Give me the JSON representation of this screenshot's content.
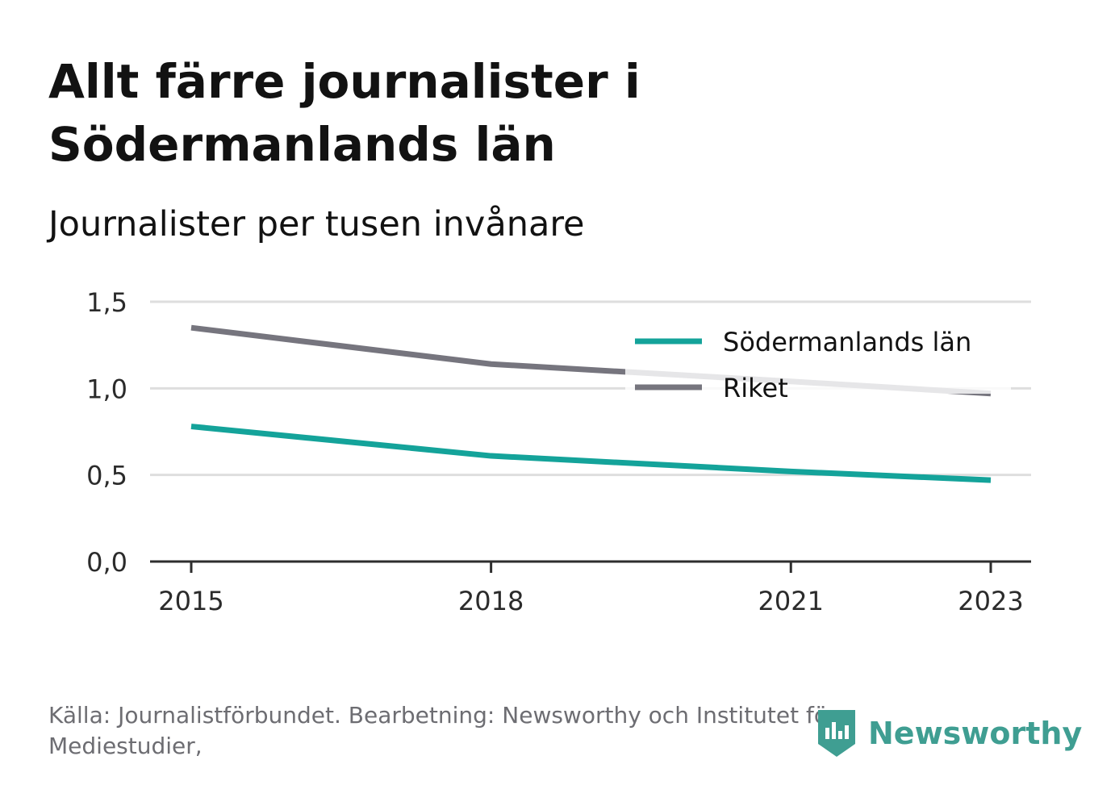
{
  "title": "Allt färre journalister i Södermanlands län",
  "subtitle": "Journalister per tusen invånare",
  "source": "Källa: Journalistförbundet. Bearbetning: Newsworthy och Institutet för Mediestudier,",
  "brand": {
    "name": "Newsworthy",
    "icon": "newsworthy-logo-icon",
    "color": "#3f9e92"
  },
  "chart_data": {
    "type": "line",
    "x_ticks": [
      "2015",
      "2018",
      "2021",
      "2023"
    ],
    "y_ticks": [
      "0,0",
      "0,5",
      "1,0",
      "1,5"
    ],
    "ylim": [
      0,
      1.5
    ],
    "xlim": [
      2015,
      2023
    ],
    "grid": true,
    "legend_position": "top-right",
    "series": [
      {
        "name": "Södermanlands län",
        "color": "#14a39a",
        "x": [
          2015,
          2018,
          2021,
          2023
        ],
        "y": [
          0.78,
          0.61,
          0.52,
          0.47
        ]
      },
      {
        "name": "Riket",
        "color": "#76757e",
        "x": [
          2015,
          2018,
          2021,
          2023
        ],
        "y": [
          1.35,
          1.14,
          1.04,
          0.97
        ]
      }
    ]
  }
}
